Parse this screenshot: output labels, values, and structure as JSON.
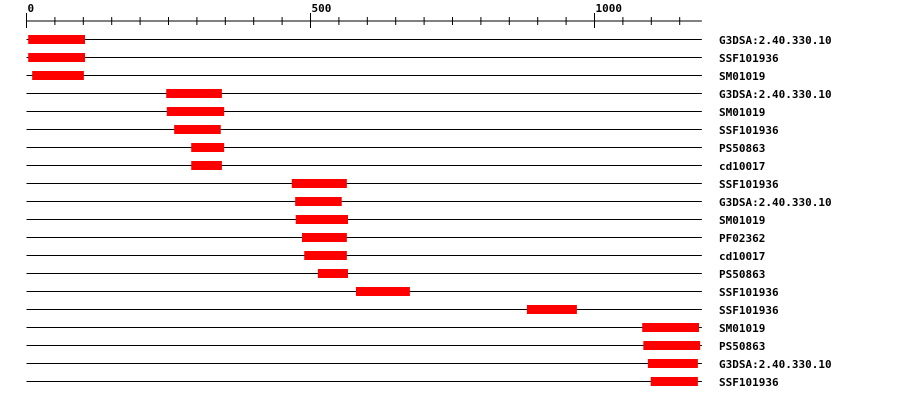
{
  "chart_data": {
    "type": "domain-map",
    "axis": {
      "min": 0,
      "max": 1189,
      "major_ticks": [
        0,
        500,
        1000
      ],
      "minor_step": 50,
      "tick_labels": [
        "0",
        "500",
        "1000"
      ]
    },
    "bar_color": "#ff0000",
    "tracks": [
      {
        "label": "G3DSA:2.40.330.10",
        "start": 3,
        "end": 103
      },
      {
        "label": "SSF101936",
        "start": 3,
        "end": 103
      },
      {
        "label": "SM01019",
        "start": 10,
        "end": 101
      },
      {
        "label": "G3DSA:2.40.330.10",
        "start": 246,
        "end": 344
      },
      {
        "label": "SM01019",
        "start": 247,
        "end": 348
      },
      {
        "label": "SSF101936",
        "start": 260,
        "end": 342
      },
      {
        "label": "PS50863",
        "start": 290,
        "end": 348
      },
      {
        "label": "cd10017",
        "start": 290,
        "end": 344
      },
      {
        "label": "SSF101936",
        "start": 467,
        "end": 564
      },
      {
        "label": "G3DSA:2.40.330.10",
        "start": 473,
        "end": 555
      },
      {
        "label": "SM01019",
        "start": 474,
        "end": 566
      },
      {
        "label": "PF02362",
        "start": 485,
        "end": 564
      },
      {
        "label": "cd10017",
        "start": 489,
        "end": 564
      },
      {
        "label": "PS50863",
        "start": 513,
        "end": 566
      },
      {
        "label": "SSF101936",
        "start": 580,
        "end": 675
      },
      {
        "label": "SSF101936",
        "start": 881,
        "end": 969
      },
      {
        "label": "SM01019",
        "start": 1084,
        "end": 1184
      },
      {
        "label": "PS50863",
        "start": 1086,
        "end": 1186
      },
      {
        "label": "G3DSA:2.40.330.10",
        "start": 1094,
        "end": 1182
      },
      {
        "label": "SSF101936",
        "start": 1099,
        "end": 1182
      }
    ]
  }
}
